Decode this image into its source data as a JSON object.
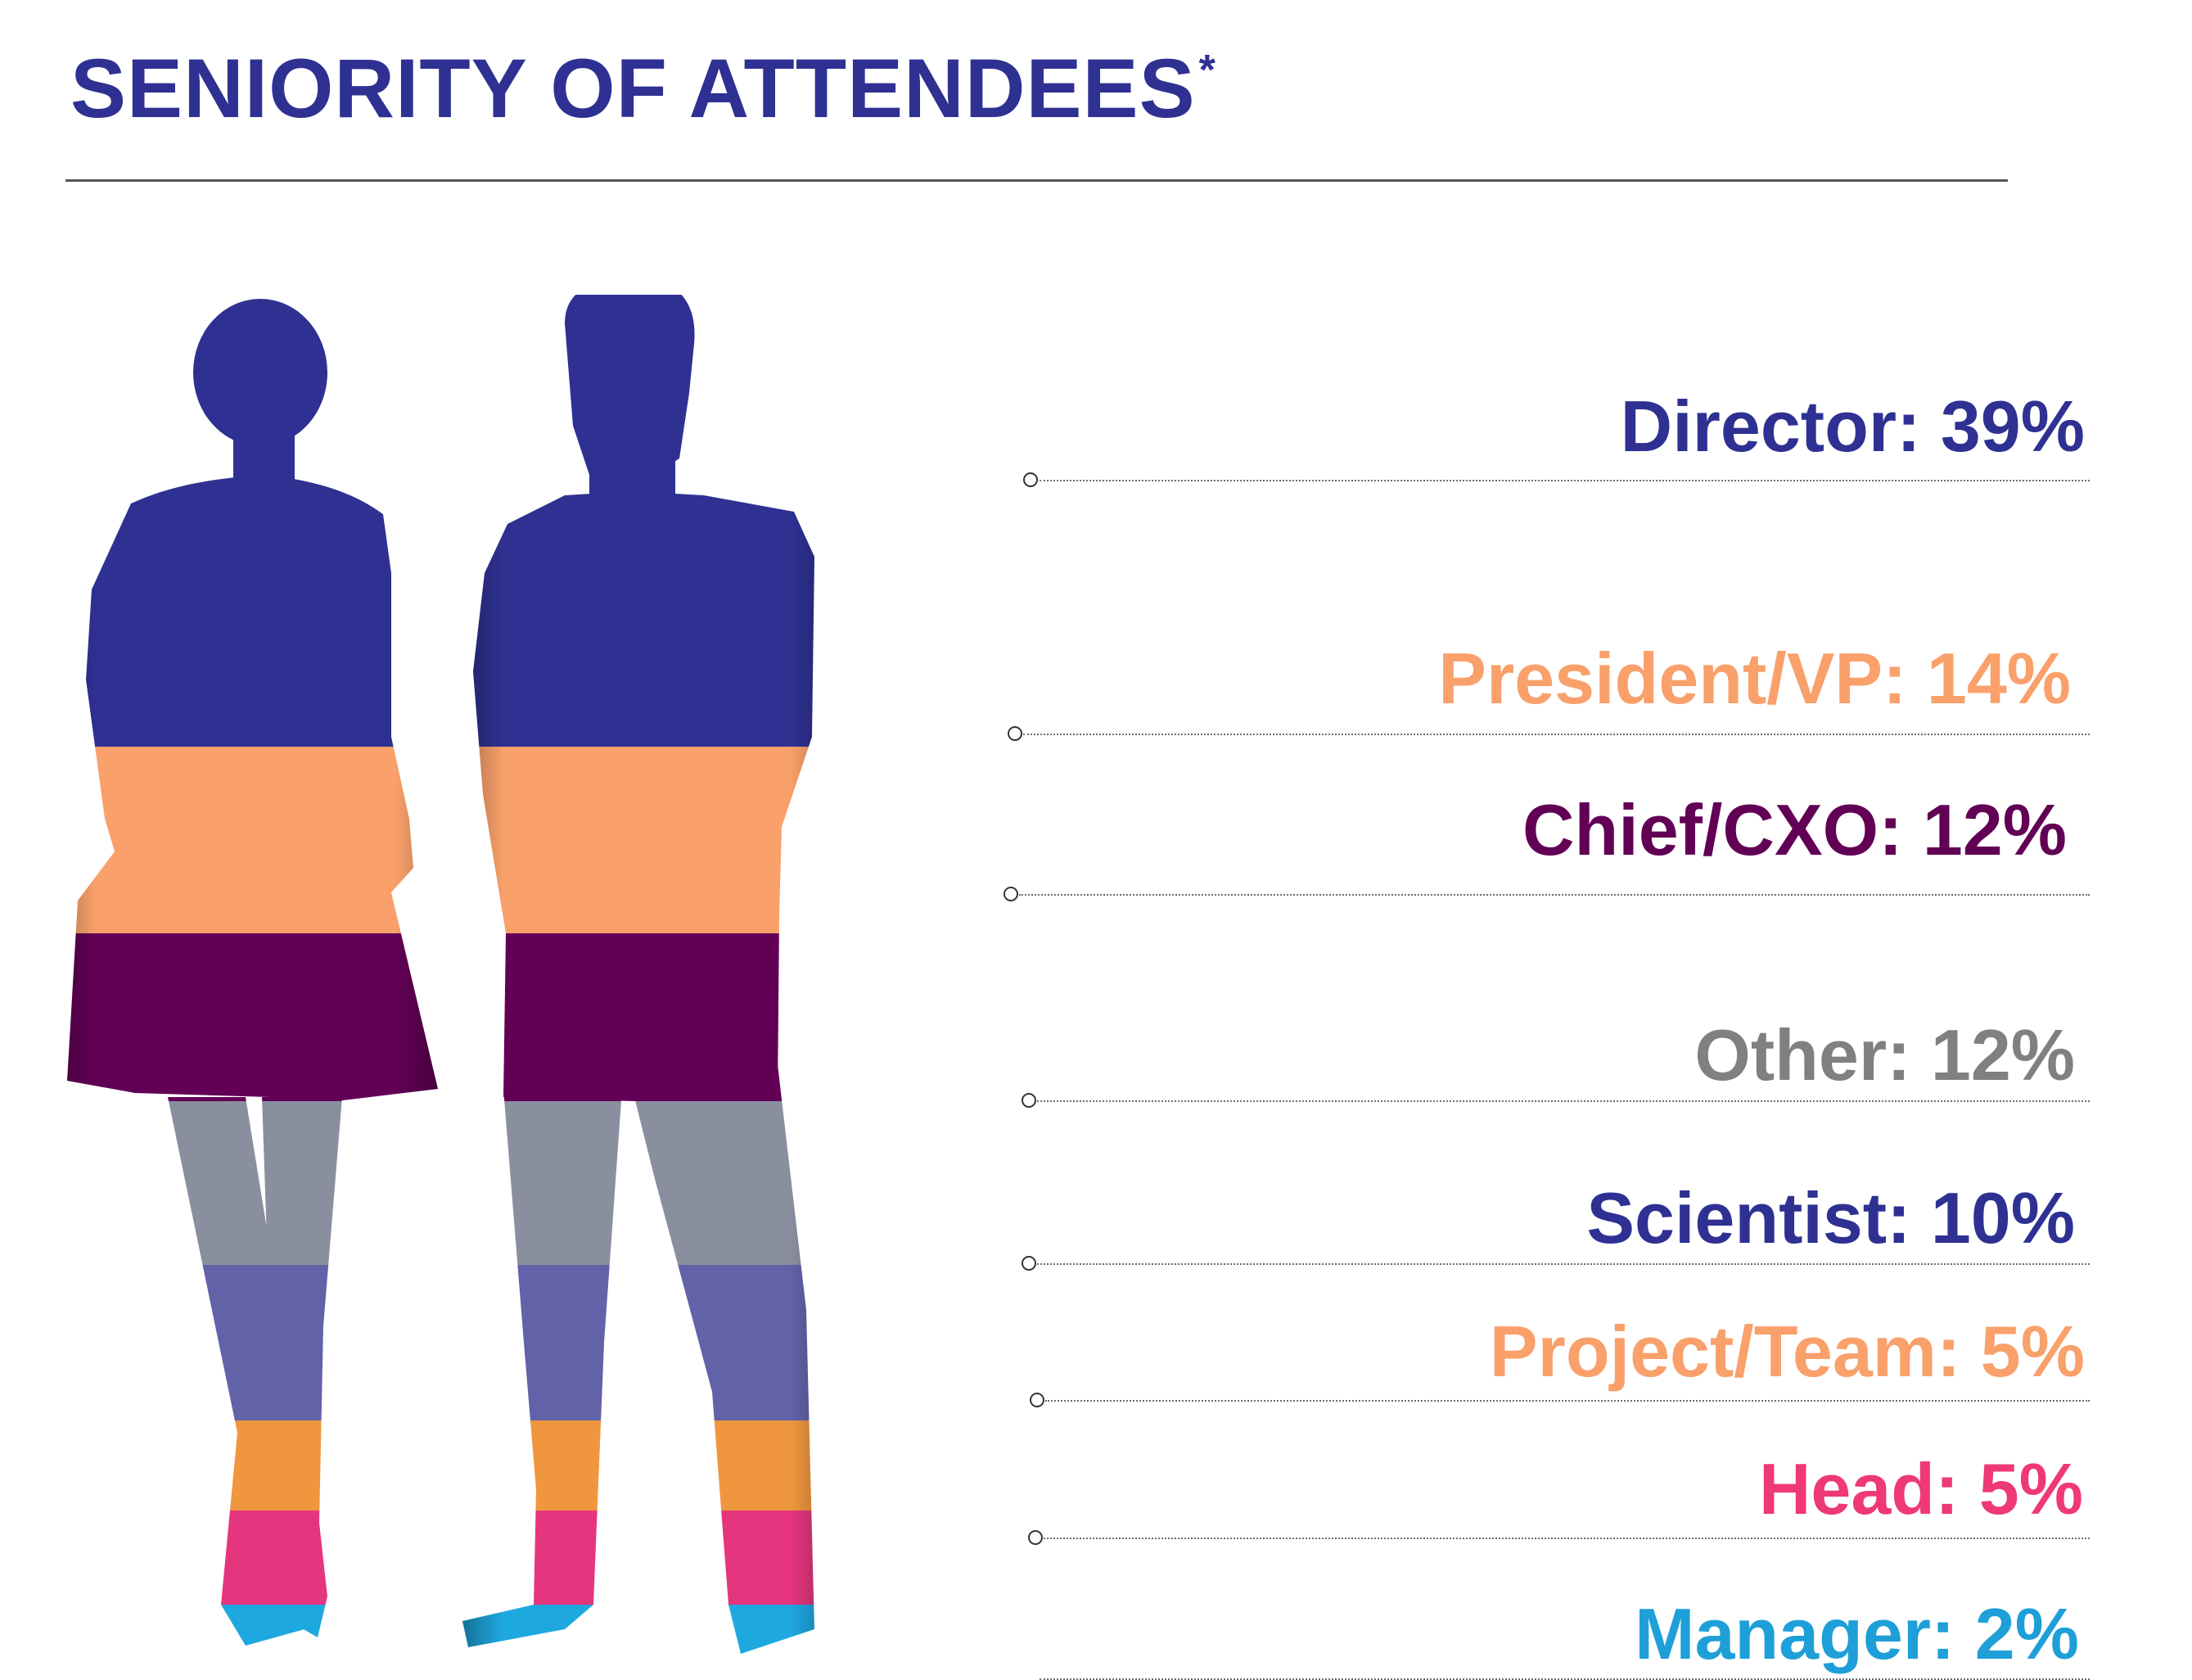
{
  "header": {
    "title": "SENIORITY OF ATTENDEES",
    "title_mark": "*",
    "title_color": "#2e3192"
  },
  "chart_data": {
    "type": "bar",
    "categories": [
      "Director",
      "President/VP",
      "Chief/CXO",
      "Other",
      "Scientist",
      "Project/Team",
      "Head",
      "Manager"
    ],
    "values": [
      39,
      14,
      12,
      12,
      10,
      5,
      5,
      2
    ],
    "unit": "%",
    "labels": [
      "Director: 39%",
      "President/VP: 14%",
      "Chief/CXO: 12%",
      "Other: 12%",
      "Scientist: 10%",
      "Project/Team: 5%",
      "Head: 5%",
      "Manager: 2%"
    ],
    "colors": [
      "#2e3192",
      "#f9a06b",
      "#620055",
      "#8a8f9f",
      "#6162a8",
      "#f0963e",
      "#e5357f",
      "#1ea8e0"
    ],
    "label_colors": [
      "#2e3192",
      "#f9a06b",
      "#620055",
      "#808080",
      "#2e3192",
      "#f9a06b",
      "#ef3876",
      "#1e9fd8"
    ]
  }
}
